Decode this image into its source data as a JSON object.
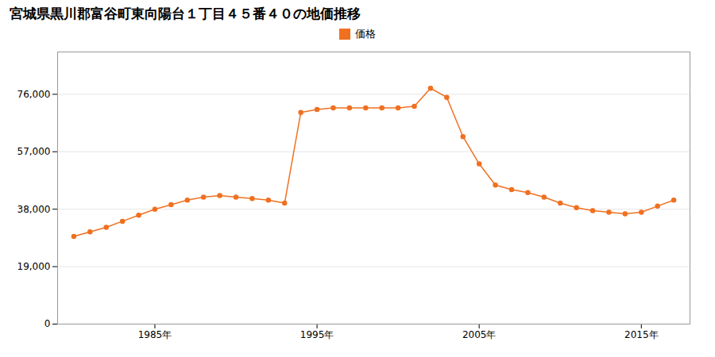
{
  "chart_data": {
    "type": "line",
    "title": "宮城県黒川郡富谷町東向陽台１丁目４５番４０の地価推移",
    "x": [
      1980,
      1981,
      1982,
      1983,
      1984,
      1985,
      1986,
      1987,
      1988,
      1989,
      1990,
      1991,
      1992,
      1993,
      1994,
      1995,
      1996,
      1997,
      1998,
      1999,
      2000,
      2001,
      2002,
      2003,
      2004,
      2005,
      2006,
      2007,
      2008,
      2009,
      2010,
      2011,
      2012,
      2013,
      2014,
      2015,
      2016,
      2017
    ],
    "series": [
      {
        "name": "価格",
        "color": "#f07020",
        "marker": "circle",
        "values": [
          29000,
          30500,
          32000,
          34000,
          36000,
          38000,
          39500,
          41000,
          42000,
          42500,
          42000,
          41500,
          41000,
          40000,
          70000,
          71000,
          71500,
          71500,
          71500,
          71500,
          71500,
          72000,
          78000,
          75000,
          62000,
          53000,
          46000,
          44500,
          43500,
          42000,
          40000,
          38500,
          37500,
          37000,
          36500,
          37000,
          39000,
          41000
        ]
      }
    ],
    "xlim": [
      1979,
      2018
    ],
    "xticks": [
      {
        "value": 1985,
        "label": "1985年"
      },
      {
        "value": 1995,
        "label": "1995年"
      },
      {
        "value": 2005,
        "label": "2005年"
      },
      {
        "value": 2015,
        "label": "2015年"
      }
    ],
    "ylim": [
      0,
      90000
    ],
    "yticks": [
      0,
      {
        "value": 19000,
        "label": "19,000"
      },
      {
        "value": 38000,
        "label": "38,000"
      },
      {
        "value": 57000,
        "label": "57,000"
      },
      {
        "value": 76000,
        "label": "76,000"
      }
    ],
    "grid": "y",
    "legend": "top"
  }
}
